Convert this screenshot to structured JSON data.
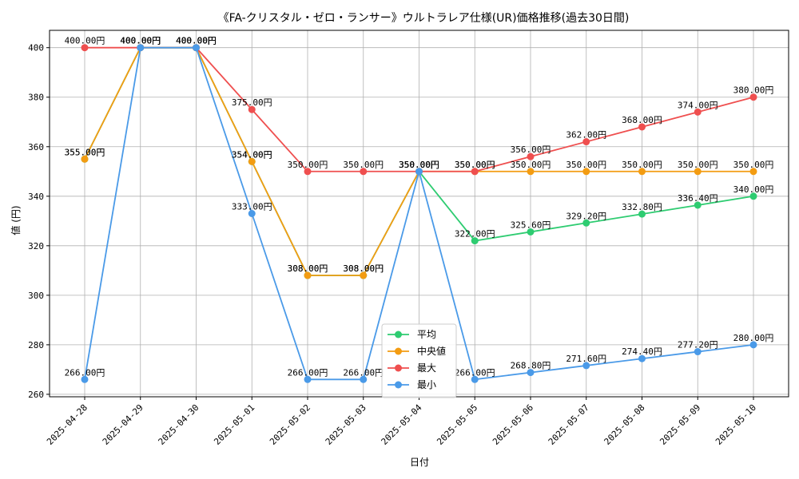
{
  "chart_data": {
    "type": "line",
    "title": "《FA-クリスタル・ゼロ・ランサー》ウルトラレア仕様(UR)価格推移(過去30日間)",
    "xlabel": "日付",
    "ylabel": "値 (円)",
    "ylim": [
      259,
      407
    ],
    "yticks": [
      260,
      280,
      300,
      320,
      340,
      360,
      380,
      400
    ],
    "grid": true,
    "legend_position": "bottom-center",
    "label_suffix": "円",
    "categories": [
      "2025-04-28",
      "2025-04-29",
      "2025-04-30",
      "2025-05-01",
      "2025-05-02",
      "2025-05-03",
      "2025-05-04",
      "2025-05-05",
      "2025-05-06",
      "2025-05-07",
      "2025-05-08",
      "2025-05-09",
      "2025-05-10"
    ],
    "series": [
      {
        "name": "平均",
        "color": "#2ecc71",
        "values": [
          355.0,
          400.0,
          400.0,
          354.0,
          308.0,
          308.0,
          350.0,
          322.0,
          325.6,
          329.2,
          332.8,
          336.4,
          340.0
        ]
      },
      {
        "name": "中央値",
        "color": "#f39c12",
        "values": [
          355.0,
          400.0,
          400.0,
          354.0,
          308.0,
          308.0,
          350.0,
          350.0,
          350.0,
          350.0,
          350.0,
          350.0,
          350.0
        ]
      },
      {
        "name": "最大",
        "color": "#ef4f4f",
        "values": [
          400.0,
          400.0,
          400.0,
          375.0,
          350.0,
          350.0,
          350.0,
          350.0,
          356.0,
          362.0,
          368.0,
          374.0,
          380.0
        ]
      },
      {
        "name": "最小",
        "color": "#4a9ae8",
        "values": [
          266.0,
          400.0,
          400.0,
          333.0,
          266.0,
          266.0,
          350.0,
          266.0,
          268.8,
          271.6,
          274.4,
          277.2,
          280.0
        ]
      }
    ]
  }
}
